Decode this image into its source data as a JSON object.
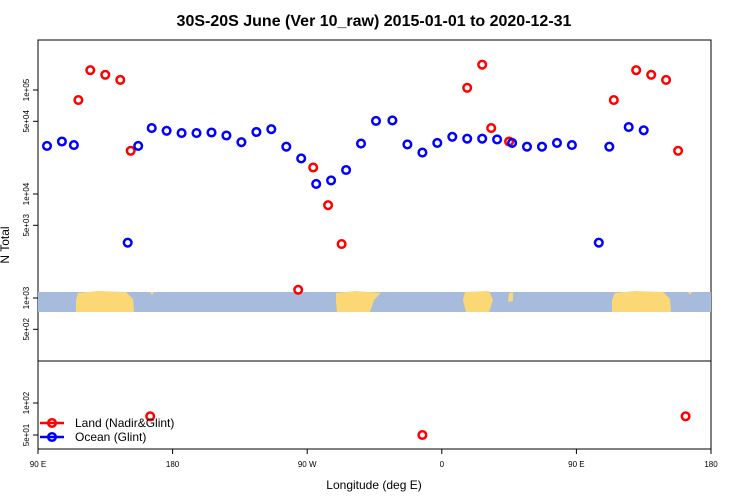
{
  "chart_data": {
    "type": "scatter",
    "title": "30S-20S June (Ver 10_raw)   2015-01-01 to 2020-12-31",
    "xlabel": "Longitude (deg E)",
    "ylabel": "N Total",
    "y_scale": "log",
    "xlim": [
      90,
      540
    ],
    "x_ticks": [
      {
        "value": 90,
        "label": "90 E"
      },
      {
        "value": 180,
        "label": "180"
      },
      {
        "value": 270,
        "label": "90 W"
      },
      {
        "value": 360,
        "label": "0"
      },
      {
        "value": 450,
        "label": "90 E"
      },
      {
        "value": 540,
        "label": "180"
      }
    ],
    "y_ticks_upper": [
      {
        "value": 100000,
        "label": "1e+05"
      },
      {
        "value": 50000,
        "label": "5e+04"
      },
      {
        "value": 10000,
        "label": "1e+04"
      },
      {
        "value": 5000,
        "label": "5e+03"
      },
      {
        "value": 1000,
        "label": "1e+03"
      },
      {
        "value": 500,
        "label": "5e+02"
      }
    ],
    "y_ticks_lower": [
      {
        "value": 100,
        "label": "1e+02"
      },
      {
        "value": 50,
        "label": "5e+01"
      }
    ],
    "legend_position": "bottom-left",
    "series": [
      {
        "name": "Land (Nadir&Glint)",
        "color": "#ff0000",
        "points": [
          [
            117,
            80000
          ],
          [
            125,
            155000
          ],
          [
            135,
            140000
          ],
          [
            145,
            125000
          ],
          [
            152,
            26000
          ],
          [
            264,
            1200
          ],
          [
            274,
            18000
          ],
          [
            284,
            7800
          ],
          [
            293,
            3300
          ],
          [
            377,
            105000
          ],
          [
            387,
            175000
          ],
          [
            393,
            43000
          ],
          [
            405,
            32000
          ],
          [
            475,
            80000
          ],
          [
            490,
            155000
          ],
          [
            500,
            140000
          ],
          [
            510,
            125000
          ],
          [
            518,
            26000
          ],
          [
            165,
            75
          ],
          [
            347,
            50
          ],
          [
            523,
            75
          ]
        ]
      },
      {
        "name": "Ocean (Glint)",
        "color": "#0000ff",
        "points": [
          [
            96,
            29000
          ],
          [
            106,
            32000
          ],
          [
            114,
            29500
          ],
          [
            150,
            3400
          ],
          [
            157,
            29000
          ],
          [
            166,
            43000
          ],
          [
            176,
            40500
          ],
          [
            186,
            38500
          ],
          [
            196,
            38500
          ],
          [
            206,
            39000
          ],
          [
            216,
            36500
          ],
          [
            226,
            31500
          ],
          [
            236,
            39500
          ],
          [
            246,
            42000
          ],
          [
            256,
            28500
          ],
          [
            266,
            22000
          ],
          [
            276,
            12500
          ],
          [
            286,
            13500
          ],
          [
            296,
            17000
          ],
          [
            306,
            30500
          ],
          [
            316,
            50500
          ],
          [
            327,
            51000
          ],
          [
            337,
            30000
          ],
          [
            347,
            25000
          ],
          [
            357,
            31000
          ],
          [
            367,
            35500
          ],
          [
            377,
            34000
          ],
          [
            387,
            34000
          ],
          [
            397,
            33500
          ],
          [
            407,
            31000
          ],
          [
            417,
            28500
          ],
          [
            427,
            28500
          ],
          [
            437,
            31000
          ],
          [
            447,
            29500
          ],
          [
            465,
            3400
          ],
          [
            472,
            28500
          ],
          [
            485,
            44000
          ],
          [
            495,
            41000
          ]
        ]
      }
    ],
    "map_colors": {
      "ocean": "#a7bcdd",
      "land": "#fcd875"
    }
  }
}
